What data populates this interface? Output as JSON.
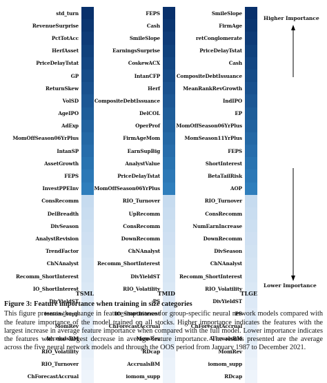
{
  "figure": {
    "columns": [
      {
        "name": "TSML",
        "features": [
          "std_turn",
          "RevenueSurprise",
          "PctTotAcc",
          "HerfAsset",
          "PriceDelayTstat",
          "GP",
          "ReturnSkew",
          "VolSD",
          "AgeIPO",
          "AdExp",
          "MomOffSeason06YrPlus",
          "IntanSP",
          "AssetGrowth",
          "FEPS",
          "InvestPPEInv",
          "ConsRecomm",
          "DelBreadth",
          "DivSeason",
          "AnalystRevision",
          "TrendFactor",
          "ChNAnalyst",
          "Recomm_ShortInterest",
          "IO_ShortInterest",
          "DivYieldST",
          "iomom_supp",
          "MomRev",
          "AccrualsBM",
          "RIO_Volatility",
          "RIO_Turnover",
          "ChForecastAccrual"
        ]
      },
      {
        "name": "TMID",
        "features": [
          "FEPS",
          "Cash",
          "SmileSlope",
          "EarningsSurprise",
          "CoskewACX",
          "IntanCFP",
          "Herf",
          "CompositeDebtIssuance",
          "DelCOL",
          "OperProf",
          "FirmAgeMom",
          "EarnSupBig",
          "AnalystValue",
          "PriceDelayTstat",
          "MomOffSeason06YrPlus",
          "RIO_Turnover",
          "UpRecomm",
          "ConsRecomm",
          "DownRecomm",
          "ChNAnalyst",
          "Recomm_ShortInterest",
          "DivYieldST",
          "RIO_Volatility",
          "PS",
          "IO_ShortInterest",
          "ChForecastAccrual",
          "MomRev",
          "RDcap",
          "AccrualsBM",
          "iomom_supp"
        ]
      },
      {
        "name": "TLGE",
        "features": [
          "SmileSlope",
          "FirmAge",
          "retConglomerate",
          "PriceDelayTstat",
          "Cash",
          "CompositeDebtIssuance",
          "MeanRankRevGrowth",
          "IndIPO",
          "EP",
          "MomOffSeason06YrPlus",
          "MomSeason11YrPlus",
          "FEPS",
          "ShortInterest",
          "BetaTailRisk",
          "AOP",
          "RIO_Turnover",
          "ConsRecomm",
          "NumEarnIncrease",
          "DownRecomm",
          "DivSeason",
          "ChNAnalyst",
          "Recomm_ShortInterest",
          "RIO_Volatility",
          "DivYieldST",
          "PS",
          "ChForecastAccrual",
          "AccrualsBM",
          "MomRev",
          "iomom_supp",
          "RDcap"
        ]
      }
    ],
    "higher_label": "Higher Importance",
    "lower_label": "Lower Importance",
    "colors": {
      "dark": "#08306b",
      "mid": "#2f7ebc",
      "light": "#c6dbef",
      "pale": "#eef4fb"
    }
  },
  "caption": {
    "title": "Figure 3: Feature importance when training in size categories",
    "body": "This figure presents the change in feature importance for group-specific neural network models compared with the feature importance of the model trained on all stocks. Higher importance indicates the features with the largest increase in average feature importance when compared with the full model. Lower importance indicates the features with the largest decrease in average feature importance. The results presented are the average across the five neural network models and through the OOS period from January 1987 to December 2021."
  }
}
